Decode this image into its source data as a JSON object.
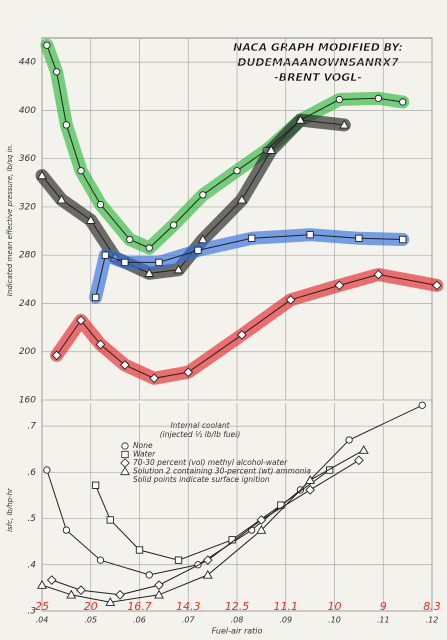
{
  "chart_data": [
    {
      "type": "line",
      "title": [
        "NACA GRAPH MODIFIED BY:",
        "DUDEMAAANOWNSANRX7",
        "-BRENT VOGL-"
      ],
      "y_label": "Indicated mean effective pressure, lb/sq in.",
      "xlim": [
        0.04,
        0.12
      ],
      "xticks": [
        0.04,
        0.05,
        0.06,
        0.07,
        0.08,
        0.09,
        0.1,
        0.11,
        0.12
      ],
      "ylim": [
        160,
        460
      ],
      "yticks": [
        160,
        200,
        240,
        280,
        320,
        360,
        400,
        440
      ],
      "grid": true,
      "series": [
        {
          "color": "#2fb83a",
          "marker": "circle",
          "x": [
            0.041,
            0.043,
            0.045,
            0.048,
            0.052,
            0.058,
            0.062,
            0.067,
            0.073,
            0.08,
            0.086,
            0.093,
            0.101,
            0.109,
            0.114
          ],
          "values": [
            454,
            432,
            388,
            350,
            322,
            293,
            286,
            305,
            330,
            350,
            367,
            392,
            409,
            410,
            407
          ]
        },
        {
          "color": "#222222",
          "marker": "triangle",
          "x": [
            0.04,
            0.044,
            0.05,
            0.055,
            0.062,
            0.068,
            0.073,
            0.081,
            0.087,
            0.093,
            0.102
          ],
          "values": [
            346,
            326,
            309,
            278,
            265,
            268,
            293,
            326,
            367,
            392,
            388
          ]
        },
        {
          "color": "#2f6fe0",
          "marker": "square",
          "x": [
            0.051,
            0.053,
            0.057,
            0.064,
            0.072,
            0.083,
            0.095,
            0.105,
            0.114
          ],
          "values": [
            245,
            280,
            274,
            274,
            284,
            294,
            297,
            294,
            293
          ]
        },
        {
          "color": "#e5272a",
          "marker": "diamond",
          "x": [
            0.043,
            0.048,
            0.052,
            0.057,
            0.063,
            0.07,
            0.081,
            0.091,
            0.101,
            0.109,
            0.121
          ],
          "values": [
            197,
            226,
            206,
            189,
            178,
            183,
            214,
            243,
            255,
            264,
            255
          ]
        }
      ]
    },
    {
      "type": "line",
      "y_label": "isfc, lb/hp-hr",
      "x_label": "Fuel-air ratio",
      "xlim": [
        0.04,
        0.12
      ],
      "xticks": [
        {
          "value": 0.04,
          "label": ".04"
        },
        {
          "value": 0.05,
          "label": ".05"
        },
        {
          "value": 0.06,
          "label": ".06"
        },
        {
          "value": 0.07,
          "label": ".07"
        },
        {
          "value": 0.08,
          "label": ".08"
        },
        {
          "value": 0.09,
          "label": ".09"
        },
        {
          "value": 0.1,
          "label": ".10"
        },
        {
          "value": 0.11,
          "label": ".11"
        },
        {
          "value": 0.12,
          "label": ".12"
        }
      ],
      "x2ticks": [
        {
          "value": 0.04,
          "label": "25"
        },
        {
          "value": 0.05,
          "label": "20"
        },
        {
          "value": 0.06,
          "label": "16.7"
        },
        {
          "value": 0.07,
          "label": "14.3"
        },
        {
          "value": 0.08,
          "label": "12.5"
        },
        {
          "value": 0.09,
          "label": "11.1"
        },
        {
          "value": 0.1,
          "label": "10"
        },
        {
          "value": 0.11,
          "label": "9"
        },
        {
          "value": 0.12,
          "label": "8.3"
        }
      ],
      "x2_color": "#e8302a",
      "ylim": [
        0.3,
        0.75
      ],
      "yticks": [
        {
          "value": 0.3,
          "label": ".3"
        },
        {
          "value": 0.4,
          "label": ".4"
        },
        {
          "value": 0.5,
          "label": ".5"
        },
        {
          "value": 0.6,
          "label": ".6"
        },
        {
          "value": 0.7,
          "label": ".7"
        }
      ],
      "grid": true,
      "legend_title": "Internal coolant",
      "legend_subtitle": "(injected ½ lb/lb fuel)",
      "legend_note": "Solid points indicate surface ignition",
      "series": [
        {
          "name": "None",
          "color": "#222222",
          "marker": "circle",
          "x": [
            0.041,
            0.045,
            0.052,
            0.062,
            0.072,
            0.083,
            0.093,
            0.103,
            0.118
          ],
          "values": [
            0.605,
            0.475,
            0.41,
            0.378,
            0.4,
            0.475,
            0.562,
            0.67,
            0.745
          ]
        },
        {
          "name": "Water",
          "color": "#222222",
          "marker": "square",
          "x": [
            0.051,
            0.054,
            0.06,
            0.068,
            0.079,
            0.089,
            0.099
          ],
          "values": [
            0.572,
            0.497,
            0.432,
            0.41,
            0.454,
            0.529,
            0.605
          ]
        },
        {
          "name": "70-30 percent (vol) methyl alcohol-water",
          "color": "#222222",
          "marker": "diamond",
          "x": [
            0.042,
            0.048,
            0.056,
            0.064,
            0.074,
            0.085,
            0.095,
            0.105
          ],
          "values": [
            0.367,
            0.345,
            0.335,
            0.356,
            0.41,
            0.497,
            0.562,
            0.626
          ]
        },
        {
          "name": "Solution 2 containing 30-percent (wt) ammonia",
          "color": "#222222",
          "marker": "triangle",
          "x": [
            0.04,
            0.046,
            0.054,
            0.064,
            0.074,
            0.085,
            0.095,
            0.106
          ],
          "values": [
            0.356,
            0.335,
            0.319,
            0.335,
            0.378,
            0.475,
            0.583,
            0.648
          ]
        }
      ]
    }
  ]
}
